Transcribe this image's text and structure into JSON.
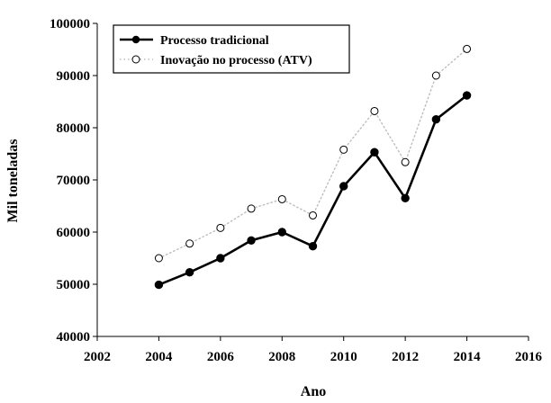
{
  "chart_data": {
    "type": "line",
    "title": "",
    "xlabel": "Ano",
    "ylabel": "Mil toneladas",
    "xlim": [
      2002,
      2016
    ],
    "ylim": [
      40000,
      100000
    ],
    "xticks": [
      2002,
      2004,
      2006,
      2008,
      2010,
      2012,
      2014,
      2016
    ],
    "yticks": [
      40000,
      50000,
      60000,
      70000,
      80000,
      90000,
      100000
    ],
    "x": [
      2004,
      2005,
      2006,
      2007,
      2008,
      2009,
      2010,
      2011,
      2012,
      2013,
      2014
    ],
    "grid": false,
    "legend_position": "top-left",
    "series": [
      {
        "name": "Processo tradicional",
        "values": [
          49900,
          52300,
          55000,
          58400,
          60000,
          57300,
          68800,
          75300,
          66500,
          81600,
          86200
        ],
        "line": "solid",
        "marker": "filled-circle",
        "color": "#000000"
      },
      {
        "name": "Inovação no processo (ATV)",
        "values": [
          55000,
          57800,
          60800,
          64500,
          66300,
          63200,
          75800,
          83200,
          73400,
          90000,
          95100
        ],
        "line": "dotted",
        "marker": "open-circle",
        "color": "#bbbbbb"
      }
    ]
  }
}
